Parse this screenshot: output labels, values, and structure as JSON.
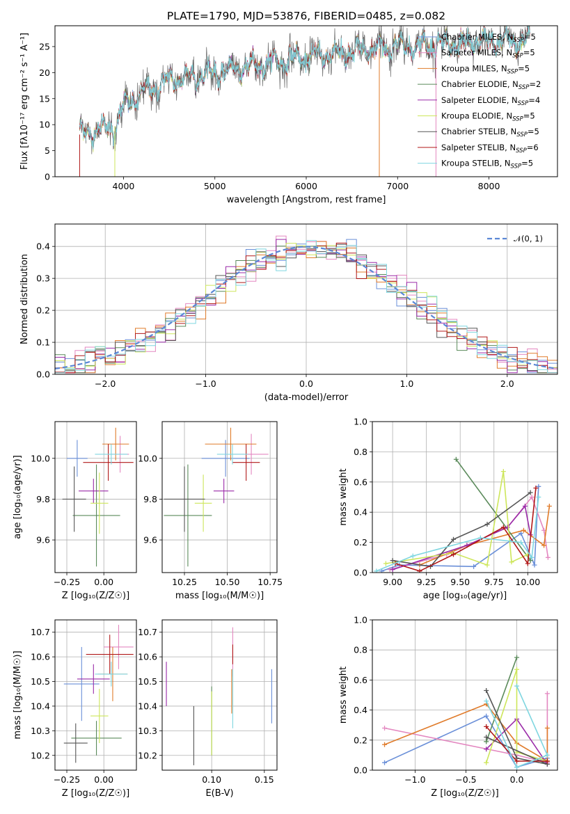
{
  "figure_title": "PLATE=1790, MJD=53876, FIBERID=0485, z=0.082",
  "colors": {
    "chabrier_miles": "#6a8fd8",
    "salpeter_miles": "#e387c0",
    "kroupa_miles": "#e07b2a",
    "chabrier_elodie": "#5a8a5a",
    "salpeter_elodie": "#9a2aa8",
    "kroupa_elodie": "#cde65a",
    "chabrier_stelib": "#555555",
    "salpeter_stelib": "#b01818",
    "kroupa_stelib": "#7fd6e0",
    "normal_curve": "#5b87d6"
  },
  "chart_data": [
    {
      "id": "spectrum",
      "type": "line",
      "xlabel": "wavelength [Angstrom, rest frame]",
      "ylabel": "Flux [f",
      "ylabel_full": "Flux [fλ10⁻¹⁷ erg cm⁻² s⁻¹ A⁻¹]",
      "xlim": [
        3250,
        8750
      ],
      "ylim": [
        0,
        29
      ],
      "xticks": [
        4000,
        5000,
        6000,
        7000,
        8000
      ],
      "yticks": [
        0,
        5,
        10,
        15,
        20,
        25
      ],
      "grid": false,
      "legend_placement": "right",
      "continuum_knots": [
        [
          3500,
          8
        ],
        [
          3700,
          9
        ],
        [
          3900,
          9.5
        ],
        [
          4000,
          13.5
        ],
        [
          4200,
          16
        ],
        [
          4500,
          18.5
        ],
        [
          5000,
          20
        ],
        [
          5500,
          21.5
        ],
        [
          6000,
          23
        ],
        [
          6500,
          24
        ],
        [
          7000,
          25
        ],
        [
          7500,
          25.5
        ],
        [
          8000,
          26
        ],
        [
          8450,
          26
        ]
      ],
      "series": [
        {
          "name": "Chabrier MILES, N",
          "sub": "SSP",
          "suffix": "=5",
          "color_key": "chabrier_miles"
        },
        {
          "name": "Salpeter MILES, N",
          "sub": "SSP",
          "suffix": "=5",
          "color_key": "salpeter_miles"
        },
        {
          "name": "Kroupa MILES, N",
          "sub": "SSP",
          "suffix": "=5",
          "color_key": "kroupa_miles"
        },
        {
          "name": "Chabrier ELODIE, N",
          "sub": "SSP",
          "suffix": "=2",
          "color_key": "chabrier_elodie"
        },
        {
          "name": "Salpeter ELODIE, N",
          "sub": "SSP",
          "suffix": "=4",
          "color_key": "salpeter_elodie"
        },
        {
          "name": "Kroupa ELODIE, N",
          "sub": "SSP",
          "suffix": "=5",
          "color_key": "kroupa_elodie"
        },
        {
          "name": "Chabrier STELIB, N",
          "sub": "SSP",
          "suffix": "=5",
          "color_key": "chabrier_stelib"
        },
        {
          "name": "Salpeter STELIB, N",
          "sub": "SSP",
          "suffix": "=6",
          "color_key": "salpeter_stelib"
        },
        {
          "name": "Kroupa STELIB, N",
          "sub": "SSP",
          "suffix": "=5",
          "color_key": "kroupa_stelib"
        }
      ]
    },
    {
      "id": "residuals",
      "type": "histogram",
      "xlabel": "(data-model)/error",
      "ylabel": "Normed distribution",
      "xlim": [
        -2.5,
        2.5
      ],
      "ylim": [
        0,
        0.47
      ],
      "xticks": [
        -2,
        -1,
        0,
        1,
        2
      ],
      "yticks": [
        0.0,
        0.1,
        0.2,
        0.3,
        0.4
      ],
      "grid": true,
      "bin_width": 0.1,
      "curve_legend": "𝒩(0, 1)",
      "legend_placement": "top-right"
    },
    {
      "id": "age_vs_Z",
      "type": "scatter",
      "xlabel": "Z [log₁₀(Z/Z☉)]",
      "ylabel": "age  [log₁₀(age/yr)]",
      "xlim": [
        -0.33,
        0.22
      ],
      "ylim": [
        9.44,
        10.18
      ],
      "xticks": [
        -0.25,
        0.0
      ],
      "yticks": [
        9.6,
        9.8,
        10.0
      ],
      "grid": true,
      "points": [
        {
          "color_key": "chabrier_miles",
          "x": -0.18,
          "xerr": 0.07,
          "y": 10.0,
          "yerr": 0.09
        },
        {
          "color_key": "salpeter_miles",
          "x": 0.11,
          "xerr": 0.06,
          "y": 10.02,
          "yerr": 0.09
        },
        {
          "color_key": "kroupa_miles",
          "x": 0.08,
          "xerr": 0.09,
          "y": 10.07,
          "yerr": 0.08
        },
        {
          "color_key": "chabrier_elodie",
          "x": -0.05,
          "xerr": 0.16,
          "y": 9.72,
          "yerr": 0.25
        },
        {
          "color_key": "salpeter_elodie",
          "x": -0.07,
          "xerr": 0.1,
          "y": 9.84,
          "yerr": 0.06
        },
        {
          "color_key": "kroupa_elodie",
          "x": -0.03,
          "xerr": 0.06,
          "y": 9.78,
          "yerr": 0.15
        },
        {
          "color_key": "chabrier_stelib",
          "x": -0.2,
          "xerr": 0.08,
          "y": 9.8,
          "yerr": 0.16
        },
        {
          "color_key": "salpeter_stelib",
          "x": 0.03,
          "xerr": 0.17,
          "y": 9.98,
          "yerr": 0.09
        },
        {
          "color_key": "kroupa_stelib",
          "x": 0.05,
          "xerr": 0.11,
          "y": 10.02,
          "yerr": 0.05
        }
      ]
    },
    {
      "id": "age_vs_mass",
      "type": "scatter",
      "xlabel": "mass [log₁₀(M/M☉)]",
      "ylabel": "",
      "xlim": [
        10.12,
        10.79
      ],
      "ylim": [
        9.44,
        10.18
      ],
      "xticks": [
        10.25,
        10.5,
        10.75
      ],
      "yticks": [
        9.6,
        9.8,
        10.0
      ],
      "grid": true,
      "points": [
        {
          "color_key": "chabrier_miles",
          "x": 10.49,
          "xerr": 0.14,
          "y": 10.0,
          "yerr": 0.09
        },
        {
          "color_key": "salpeter_miles",
          "x": 10.64,
          "xerr": 0.1,
          "y": 10.02,
          "yerr": 0.1
        },
        {
          "color_key": "kroupa_miles",
          "x": 10.52,
          "xerr": 0.15,
          "y": 10.07,
          "yerr": 0.08
        },
        {
          "color_key": "chabrier_elodie",
          "x": 10.27,
          "xerr": 0.14,
          "y": 9.72,
          "yerr": 0.25
        },
        {
          "color_key": "salpeter_elodie",
          "x": 10.48,
          "xerr": 0.06,
          "y": 9.84,
          "yerr": 0.06
        },
        {
          "color_key": "kroupa_elodie",
          "x": 10.36,
          "xerr": 0.05,
          "y": 9.78,
          "yerr": 0.14
        },
        {
          "color_key": "chabrier_stelib",
          "x": 10.25,
          "xerr": 0.12,
          "y": 9.8,
          "yerr": 0.16
        },
        {
          "color_key": "salpeter_stelib",
          "x": 10.61,
          "xerr": 0.08,
          "y": 9.98,
          "yerr": 0.09
        },
        {
          "color_key": "kroupa_stelib",
          "x": 10.53,
          "xerr": 0.09,
          "y": 10.02,
          "yerr": 0.05
        }
      ]
    },
    {
      "id": "weight_vs_age",
      "type": "line",
      "xlabel": "age  [log₁₀(age/yr)]",
      "ylabel": "mass weight",
      "xlim": [
        8.85,
        10.22
      ],
      "ylim": [
        0,
        1
      ],
      "xticks": [
        9.0,
        9.25,
        9.5,
        9.75,
        10.0
      ],
      "yticks": [
        0.0,
        0.2,
        0.4,
        0.6,
        0.8,
        1.0
      ],
      "grid": true,
      "series": [
        {
          "color_key": "chabrier_miles",
          "points": [
            [
              8.92,
              0.01
            ],
            [
              9.05,
              0.05
            ],
            [
              9.6,
              0.04
            ],
            [
              9.95,
              0.26
            ],
            [
              10.05,
              0.05
            ],
            [
              10.08,
              0.57
            ]
          ]
        },
        {
          "color_key": "salpeter_miles",
          "points": [
            [
              8.98,
              0.02
            ],
            [
              9.4,
              0.12
            ],
            [
              9.85,
              0.3
            ],
            [
              10.03,
              0.5
            ],
            [
              10.12,
              0.28
            ],
            [
              10.15,
              0.1
            ]
          ]
        },
        {
          "color_key": "kroupa_miles",
          "points": [
            [
              9.2,
              0.05
            ],
            [
              9.55,
              0.18
            ],
            [
              9.97,
              0.28
            ],
            [
              10.12,
              0.18
            ],
            [
              10.16,
              0.44
            ]
          ]
        },
        {
          "color_key": "chabrier_elodie",
          "points": [
            [
              9.47,
              0.75
            ],
            [
              10.02,
              0.08
            ]
          ]
        },
        {
          "color_key": "salpeter_elodie",
          "points": [
            [
              9.0,
              0.02
            ],
            [
              9.55,
              0.18
            ],
            [
              9.85,
              0.3
            ],
            [
              9.98,
              0.44
            ],
            [
              10.02,
              0.25
            ]
          ]
        },
        {
          "color_key": "kroupa_elodie",
          "points": [
            [
              8.95,
              0.06
            ],
            [
              9.45,
              0.13
            ],
            [
              9.7,
              0.05
            ],
            [
              9.82,
              0.67
            ],
            [
              9.88,
              0.07
            ],
            [
              10.0,
              0.12
            ]
          ]
        },
        {
          "color_key": "chabrier_stelib",
          "points": [
            [
              9.0,
              0.08
            ],
            [
              9.28,
              0.04
            ],
            [
              9.45,
              0.22
            ],
            [
              9.7,
              0.32
            ],
            [
              10.02,
              0.53
            ]
          ]
        },
        {
          "color_key": "salpeter_stelib",
          "points": [
            [
              9.02,
              0.06
            ],
            [
              9.2,
              0.01
            ],
            [
              9.45,
              0.12
            ],
            [
              9.82,
              0.3
            ],
            [
              10.0,
              0.06
            ],
            [
              10.06,
              0.56
            ]
          ]
        },
        {
          "color_key": "kroupa_stelib",
          "points": [
            [
              8.88,
              0.01
            ],
            [
              9.15,
              0.11
            ],
            [
              9.65,
              0.23
            ],
            [
              9.95,
              0.2
            ],
            [
              10.03,
              0.1
            ],
            [
              10.08,
              0.5
            ]
          ]
        }
      ]
    },
    {
      "id": "mass_vs_Z",
      "type": "scatter",
      "xlabel": "Z [log₁₀(Z/Z☉)]",
      "ylabel": "mass [log₁₀(M/M☉)]",
      "xlim": [
        -0.33,
        0.22
      ],
      "ylim": [
        10.14,
        10.75
      ],
      "xticks": [
        -0.25,
        0.0
      ],
      "yticks": [
        10.2,
        10.3,
        10.4,
        10.5,
        10.6,
        10.7
      ],
      "grid": true,
      "points": [
        {
          "color_key": "chabrier_miles",
          "x": -0.15,
          "xerr": 0.12,
          "y": 10.49,
          "yerr": 0.15
        },
        {
          "color_key": "salpeter_miles",
          "x": 0.1,
          "xerr": 0.1,
          "y": 10.64,
          "yerr": 0.09
        },
        {
          "color_key": "kroupa_miles",
          "x": 0.06,
          "xerr": 0.1,
          "y": 10.53,
          "yerr": 0.11
        },
        {
          "color_key": "chabrier_elodie",
          "x": -0.05,
          "xerr": 0.17,
          "y": 10.27,
          "yerr": 0.07
        },
        {
          "color_key": "salpeter_elodie",
          "x": -0.07,
          "xerr": 0.11,
          "y": 10.51,
          "yerr": 0.06
        },
        {
          "color_key": "kroupa_elodie",
          "x": -0.03,
          "xerr": 0.06,
          "y": 10.36,
          "yerr": 0.11
        },
        {
          "color_key": "chabrier_stelib",
          "x": -0.19,
          "xerr": 0.08,
          "y": 10.25,
          "yerr": 0.08
        },
        {
          "color_key": "salpeter_stelib",
          "x": 0.04,
          "xerr": 0.16,
          "y": 10.61,
          "yerr": 0.08
        },
        {
          "color_key": "kroupa_stelib",
          "x": 0.05,
          "xerr": 0.11,
          "y": 10.53,
          "yerr": 0.05
        }
      ]
    },
    {
      "id": "mass_vs_ebv",
      "type": "scatter",
      "xlabel": "E(B-V)",
      "ylabel": "",
      "xlim": [
        0.053,
        0.162
      ],
      "ylim": [
        10.14,
        10.75
      ],
      "xticks": [
        0.1,
        0.15
      ],
      "yticks": [
        10.2,
        10.3,
        10.4,
        10.5,
        10.6,
        10.7
      ],
      "grid": true,
      "points": [
        {
          "color_key": "chabrier_miles",
          "x": 0.157,
          "xerr": 0,
          "y": 10.44,
          "yerr": 0.11
        },
        {
          "color_key": "salpeter_miles",
          "x": 0.12,
          "xerr": 0,
          "y": 10.62,
          "yerr": 0.1
        },
        {
          "color_key": "kroupa_miles",
          "x": 0.119,
          "xerr": 0,
          "y": 10.46,
          "yerr": 0.09
        },
        {
          "color_key": "chabrier_elodie",
          "x": 0.1,
          "xerr": 0,
          "y": 10.34,
          "yerr": 0.14
        },
        {
          "color_key": "salpeter_elodie",
          "x": 0.057,
          "xerr": 0,
          "y": 10.49,
          "yerr": 0.09
        },
        {
          "color_key": "kroupa_elodie",
          "x": 0.1,
          "xerr": 0,
          "y": 10.33,
          "yerr": 0.13
        },
        {
          "color_key": "chabrier_stelib",
          "x": 0.083,
          "xerr": 0,
          "y": 10.28,
          "yerr": 0.12
        },
        {
          "color_key": "salpeter_stelib",
          "x": 0.12,
          "xerr": 0,
          "y": 10.61,
          "yerr": 0.04
        },
        {
          "color_key": "kroupa_stelib",
          "x": 0.12,
          "xerr": 0,
          "y": 10.43,
          "yerr": 0.12
        }
      ]
    },
    {
      "id": "weight_vs_Z",
      "type": "line",
      "xlabel": "Z [log₁₀(Z/Z☉)]",
      "ylabel": "mass weight",
      "xlim": [
        -1.42,
        0.4
      ],
      "ylim": [
        0,
        1
      ],
      "xticks": [
        -1.0,
        -0.5,
        0.0
      ],
      "yticks": [
        0.0,
        0.2,
        0.4,
        0.6,
        0.8,
        1.0
      ],
      "grid": true,
      "series": [
        {
          "color_key": "chabrier_miles",
          "points": [
            [
              -1.3,
              0.05
            ],
            [
              -0.3,
              0.36
            ],
            [
              0.0,
              0.02
            ],
            [
              0.3,
              0.08
            ]
          ]
        },
        {
          "color_key": "salpeter_miles",
          "points": [
            [
              -1.3,
              0.28
            ],
            [
              0.0,
              0.1
            ],
            [
              0.3,
              0.05
            ],
            [
              0.3,
              0.51
            ]
          ]
        },
        {
          "color_key": "kroupa_miles",
          "points": [
            [
              -1.3,
              0.17
            ],
            [
              -0.3,
              0.44
            ],
            [
              0.0,
              0.18
            ],
            [
              0.3,
              0.06
            ],
            [
              0.3,
              0.28
            ]
          ]
        },
        {
          "color_key": "chabrier_elodie",
          "points": [
            [
              -0.3,
              0.19
            ],
            [
              0.0,
              0.75
            ]
          ]
        },
        {
          "color_key": "salpeter_elodie",
          "points": [
            [
              -0.3,
              0.14
            ],
            [
              0.0,
              0.34
            ],
            [
              0.3,
              0.04
            ]
          ]
        },
        {
          "color_key": "kroupa_elodie",
          "points": [
            [
              -0.3,
              0.05
            ],
            [
              0.0,
              0.67
            ],
            [
              0.0,
              0.12
            ],
            [
              0.3,
              0.06
            ]
          ]
        },
        {
          "color_key": "chabrier_stelib",
          "points": [
            [
              -0.3,
              0.53
            ],
            [
              0.0,
              0.08
            ],
            [
              0.3,
              0.04
            ],
            [
              -0.3,
              0.22
            ]
          ]
        },
        {
          "color_key": "salpeter_stelib",
          "points": [
            [
              -0.3,
              0.29
            ],
            [
              0.0,
              0.06
            ],
            [
              0.3,
              0.06
            ]
          ]
        },
        {
          "color_key": "kroupa_stelib",
          "points": [
            [
              -0.3,
              0.46
            ],
            [
              0.0,
              0.02
            ],
            [
              0.3,
              0.1
            ],
            [
              0.0,
              0.56
            ]
          ]
        }
      ]
    }
  ]
}
